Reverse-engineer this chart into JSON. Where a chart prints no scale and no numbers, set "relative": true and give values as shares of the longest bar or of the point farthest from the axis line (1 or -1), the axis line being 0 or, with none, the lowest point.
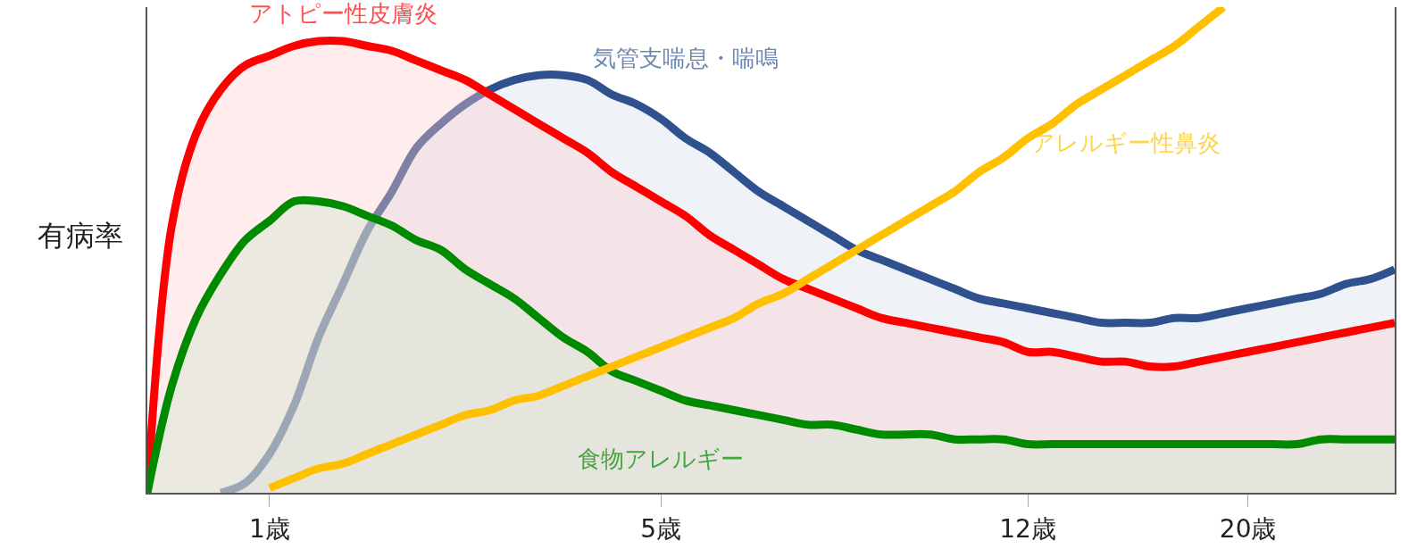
{
  "chart_data": {
    "type": "area",
    "relative": true,
    "ylabel": "有病率",
    "categories": [
      null,
      null,
      null,
      null,
      null,
      "1歳",
      null,
      null,
      null,
      null,
      null,
      null,
      null,
      null,
      null,
      null,
      null,
      null,
      null,
      null,
      null,
      "5歳",
      null,
      null,
      null,
      null,
      null,
      null,
      null,
      null,
      null,
      null,
      null,
      null,
      null,
      null,
      "12歳",
      null,
      null,
      null,
      null,
      null,
      null,
      null,
      null,
      "20歳",
      null,
      null,
      null,
      null,
      null,
      null
    ],
    "grid": false,
    "legend": false,
    "series": [
      {
        "name": "食物アレルギー",
        "color": "#008a00",
        "values": [
          0.0,
          0.22,
          0.36,
          0.45,
          0.52,
          0.56,
          0.6,
          0.6,
          0.59,
          0.57,
          0.55,
          0.52,
          0.5,
          0.46,
          0.43,
          0.4,
          0.36,
          0.32,
          0.29,
          0.25,
          0.23,
          0.21,
          0.19,
          0.18,
          0.17,
          0.16,
          0.15,
          0.14,
          0.14,
          0.13,
          0.12,
          0.12,
          0.12,
          0.11,
          0.11,
          0.11,
          0.1,
          0.1,
          0.1,
          0.1,
          0.1,
          0.1,
          0.1,
          0.1,
          0.1,
          0.1,
          0.1,
          0.1,
          0.11,
          0.11,
          0.11,
          0.11
        ]
      },
      {
        "name": "アトピー性皮膚炎",
        "color": "#ff0000",
        "values": [
          0.0,
          0.55,
          0.74,
          0.83,
          0.88,
          0.9,
          0.92,
          0.93,
          0.93,
          0.92,
          0.91,
          0.89,
          0.87,
          0.85,
          0.82,
          0.79,
          0.76,
          0.73,
          0.7,
          0.66,
          0.63,
          0.6,
          0.57,
          0.53,
          0.5,
          0.47,
          0.44,
          0.42,
          0.4,
          0.38,
          0.36,
          0.35,
          0.34,
          0.33,
          0.32,
          0.31,
          0.29,
          0.29,
          0.28,
          0.27,
          0.27,
          0.26,
          0.26,
          0.27,
          0.28,
          0.29,
          0.3,
          0.31,
          0.32,
          0.33,
          0.34,
          0.35
        ]
      },
      {
        "name": "気管支喘息・喘鳴",
        "color": "#2f528f",
        "values": [
          null,
          null,
          null,
          0.0,
          0.02,
          0.08,
          0.18,
          0.32,
          0.43,
          0.54,
          0.62,
          0.71,
          0.76,
          0.8,
          0.83,
          0.85,
          0.86,
          0.86,
          0.85,
          0.82,
          0.8,
          0.77,
          0.73,
          0.7,
          0.66,
          0.62,
          0.59,
          0.56,
          0.53,
          0.5,
          0.48,
          0.46,
          0.44,
          0.42,
          0.4,
          0.39,
          0.38,
          0.37,
          0.36,
          0.35,
          0.35,
          0.35,
          0.36,
          0.36,
          0.37,
          0.38,
          0.39,
          0.4,
          0.41,
          0.43,
          0.44,
          0.46
        ]
      },
      {
        "name": "アレルギー性鼻炎",
        "type": "line",
        "color": "#ffc000",
        "values": [
          null,
          null,
          null,
          null,
          null,
          0.01,
          0.03,
          0.05,
          0.06,
          0.08,
          0.1,
          0.12,
          0.14,
          0.16,
          0.17,
          0.19,
          0.2,
          0.22,
          0.24,
          0.26,
          0.28,
          0.3,
          0.32,
          0.34,
          0.36,
          0.39,
          0.41,
          0.44,
          0.47,
          0.5,
          0.53,
          0.56,
          0.59,
          0.62,
          0.66,
          0.69,
          0.73,
          0.76,
          0.8,
          0.83,
          0.86,
          0.89,
          0.92,
          0.96,
          1.0,
          null,
          null,
          null,
          null,
          null,
          null,
          null
        ]
      }
    ]
  }
}
